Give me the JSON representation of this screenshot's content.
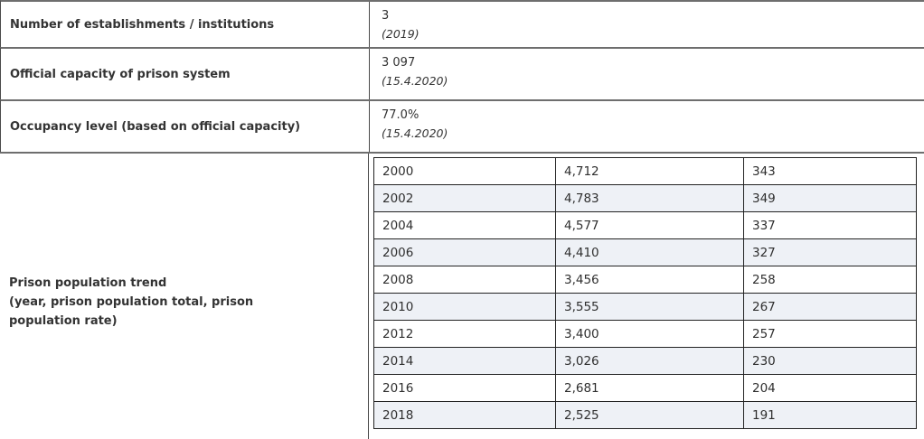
{
  "colors": {
    "outer_separator": "#6e6e6e",
    "column_divider": "#4a4a4a",
    "inner_table_border": "#222222",
    "alt_row_background": "#eef1f6",
    "text": "#333333"
  },
  "rows": [
    {
      "label": "Number of establishments / institutions",
      "value": "3",
      "note": "(2019)"
    },
    {
      "label": "Official capacity of prison system",
      "value": "3 097",
      "note": "(15.4.2020)"
    },
    {
      "label": "Occupancy level (based on official capacity)",
      "value": "77.0%",
      "note": "(15.4.2020)"
    }
  ],
  "trend": {
    "label_line1": "Prison population trend",
    "label_line2": "(year, prison population total, prison population rate)",
    "columns": [
      "year",
      "total",
      "rate"
    ],
    "rows": [
      {
        "year": "2000",
        "total": "4,712",
        "rate": "343"
      },
      {
        "year": "2002",
        "total": "4,783",
        "rate": "349"
      },
      {
        "year": "2004",
        "total": "4,577",
        "rate": "337"
      },
      {
        "year": "2006",
        "total": "4,410",
        "rate": "327"
      },
      {
        "year": "2008",
        "total": "3,456",
        "rate": "258"
      },
      {
        "year": "2010",
        "total": "3,555",
        "rate": "267"
      },
      {
        "year": "2012",
        "total": "3,400",
        "rate": "257"
      },
      {
        "year": "2014",
        "total": "3,026",
        "rate": "230"
      },
      {
        "year": "2016",
        "total": "2,681",
        "rate": "204"
      },
      {
        "year": "2018",
        "total": "2,525",
        "rate": "191"
      }
    ]
  }
}
